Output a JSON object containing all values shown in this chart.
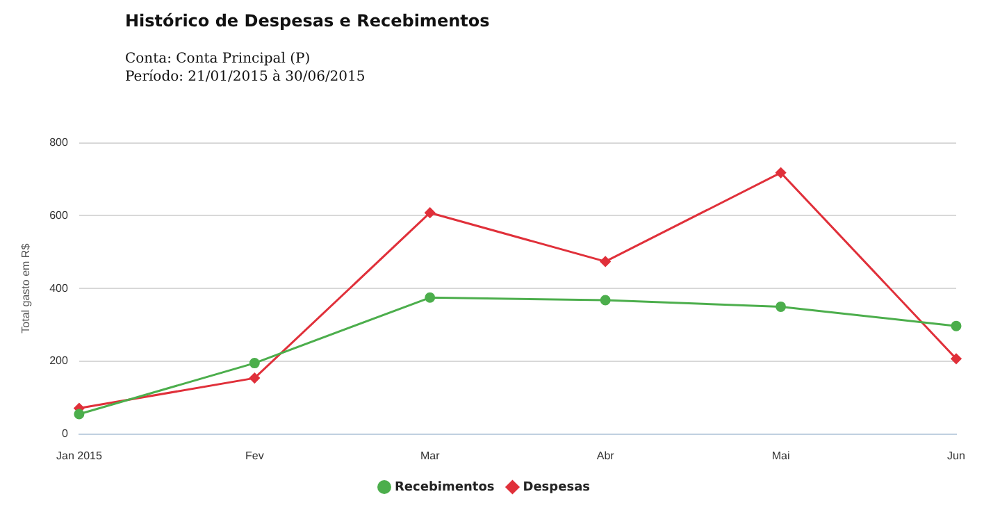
{
  "chart_data": {
    "type": "line",
    "title": "Histórico de Despesas e Recebimentos",
    "annotations": [
      "Conta: Conta Principal (P)",
      "Período: 21/01/2015 à 30/06/2015"
    ],
    "ylabel": "Total gasto em R$",
    "categories": [
      "Jan 2015",
      "Fev",
      "Mar",
      "Abr",
      "Mai",
      "Jun"
    ],
    "series": [
      {
        "name": "Recebimentos",
        "color": "#4cae4c",
        "marker": "circle",
        "values": [
          55,
          195,
          375,
          368,
          350,
          297
        ]
      },
      {
        "name": "Despesas",
        "color": "#e0303a",
        "marker": "diamond",
        "values": [
          71,
          154,
          608,
          474,
          718,
          207
        ]
      }
    ],
    "ylim": [
      0,
      800
    ],
    "yticks": [
      0,
      200,
      400,
      600,
      800
    ],
    "grid": "y",
    "legend": "bottom",
    "line_style": "solid"
  }
}
